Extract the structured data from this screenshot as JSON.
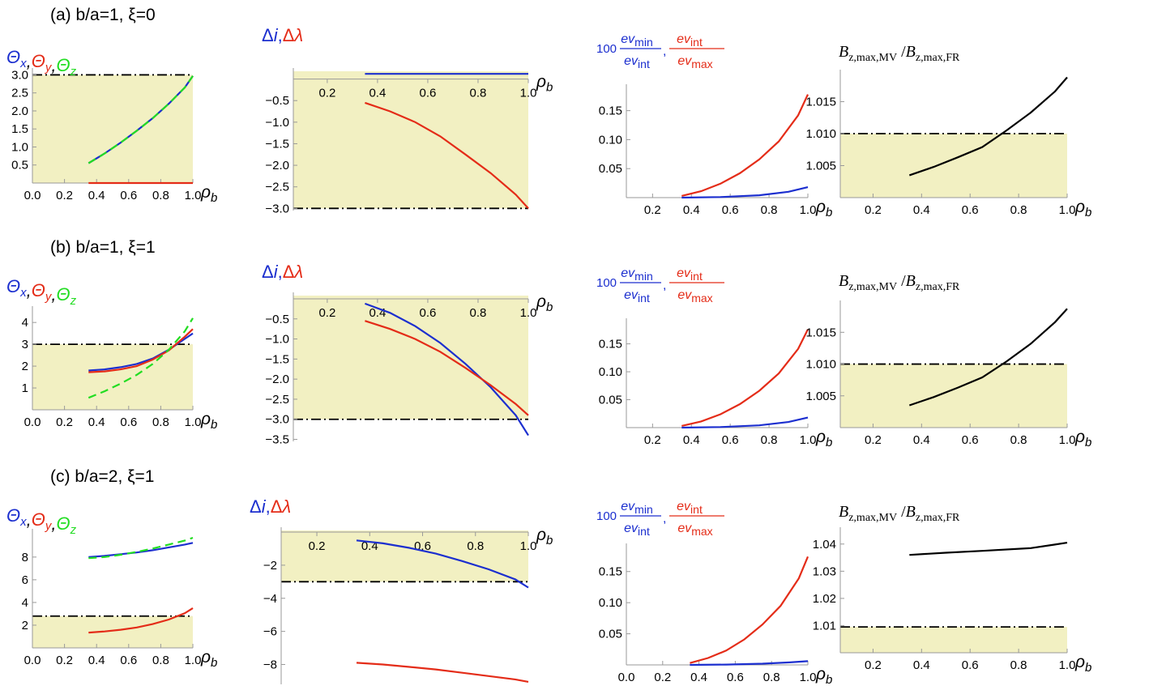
{
  "colors": {
    "blue": "#1c2fcf",
    "red": "#e42c18",
    "green": "#22dd22",
    "black": "#000000",
    "shade": "#f2f0c2"
  },
  "labels": {
    "theta_x": "Θx",
    "theta_y": "Θy",
    "theta_z": "Θz",
    "delta_i": "Δi",
    "delta_lambda": "Δλ",
    "ev_prefix": "100",
    "ev_min": "ev_min",
    "ev_int": "ev_int",
    "ev_max": "ev_max",
    "bratio": "B_z,max,MV / B_z,max,FR",
    "xlabel": "ρb"
  },
  "chart_data": [
    {
      "id": "a1",
      "type": "line",
      "row_title": "(a) b/a=1,  ξ=0",
      "xlabel": "ρb",
      "ylabel": "Θx, Θy, Θz",
      "xlim": [
        0,
        1
      ],
      "ylim": [
        0,
        3.1
      ],
      "xticks": [
        "0.0",
        "0.2",
        "0.4",
        "0.6",
        "0.8",
        "1.0"
      ],
      "xtick_values": [
        0,
        0.2,
        0.4,
        0.6,
        0.8,
        1.0
      ],
      "yticks": [
        "0.5",
        "1.0",
        "1.5",
        "2.0",
        "2.5",
        "3.0"
      ],
      "ytick_values": [
        0.5,
        1.0,
        1.5,
        2.0,
        2.5,
        3.0
      ],
      "threshold": 3.0,
      "shade_below": 3.0,
      "series": [
        {
          "name": "Θx",
          "color": "blue",
          "dash": false,
          "x": [
            0.35,
            0.45,
            0.55,
            0.65,
            0.75,
            0.85,
            0.95,
            1.0
          ],
          "y": [
            0.55,
            0.82,
            1.12,
            1.45,
            1.8,
            2.2,
            2.65,
            2.97
          ]
        },
        {
          "name": "Θz",
          "color": "green",
          "dash": true,
          "x": [
            0.35,
            0.45,
            0.55,
            0.65,
            0.75,
            0.85,
            0.95,
            1.0
          ],
          "y": [
            0.55,
            0.82,
            1.12,
            1.45,
            1.8,
            2.2,
            2.65,
            2.97
          ]
        },
        {
          "name": "Θy",
          "color": "red",
          "dash": false,
          "x": [
            0.35,
            1.0
          ],
          "y": [
            0,
            0
          ]
        }
      ]
    },
    {
      "id": "a2",
      "type": "line",
      "xlabel": "ρb",
      "ylabel": "Δi, Δλ",
      "xlim": [
        0.065,
        1
      ],
      "ylim": [
        -3.05,
        0.18
      ],
      "xaxis_at": 0,
      "xticks": [
        "0.2",
        "0.4",
        "0.6",
        "0.8",
        "1.0"
      ],
      "xtick_values": [
        0.2,
        0.4,
        0.6,
        0.8,
        1.0
      ],
      "yticks": [
        "-0.5",
        "-1.0",
        "-1.5",
        "-2.0",
        "-2.5",
        "-3.0"
      ],
      "ytick_values": [
        -0.5,
        -1.0,
        -1.5,
        -2.0,
        -2.5,
        -3.0
      ],
      "threshold": -3.0,
      "shade_above": -3.0,
      "series": [
        {
          "name": "Δi",
          "color": "blue",
          "dash": false,
          "x": [
            0.35,
            1.0
          ],
          "y": [
            0.12,
            0.12
          ]
        },
        {
          "name": "Δλ",
          "color": "red",
          "dash": false,
          "x": [
            0.35,
            0.45,
            0.55,
            0.65,
            0.75,
            0.85,
            0.95,
            1.0
          ],
          "y": [
            -0.55,
            -0.75,
            -1.0,
            -1.33,
            -1.75,
            -2.18,
            -2.68,
            -3.0
          ]
        }
      ]
    },
    {
      "id": "a3",
      "type": "line",
      "xlabel": "ρb",
      "ylabel": "100 ev_min/ev_int, ev_int/ev_max",
      "xlim": [
        0.065,
        1
      ],
      "ylim": [
        0,
        0.19
      ],
      "xticks": [
        "0.2",
        "0.4",
        "0.6",
        "0.8",
        "1.0"
      ],
      "xtick_values": [
        0.2,
        0.4,
        0.6,
        0.8,
        1.0
      ],
      "yticks": [
        "0.05",
        "0.10",
        "0.15"
      ],
      "ytick_values": [
        0.05,
        0.1,
        0.15
      ],
      "series": [
        {
          "name": "ev_int/ev_max",
          "color": "red",
          "dash": false,
          "x": [
            0.35,
            0.45,
            0.55,
            0.65,
            0.75,
            0.85,
            0.95,
            1.0
          ],
          "y": [
            0.003,
            0.011,
            0.024,
            0.042,
            0.066,
            0.097,
            0.142,
            0.178
          ]
        },
        {
          "name": "100 ev_min/ev_int",
          "color": "blue",
          "dash": false,
          "x": [
            0.35,
            0.55,
            0.75,
            0.9,
            1.0
          ],
          "y": [
            0.0,
            0.001,
            0.004,
            0.01,
            0.018
          ]
        }
      ]
    },
    {
      "id": "a4",
      "type": "line",
      "xlabel": "ρb",
      "ylabel": "B_z,max,MV / B_z,max,FR",
      "xlim": [
        0.065,
        1
      ],
      "ylim": [
        1.0,
        1.0195
      ],
      "xticks": [
        "0.2",
        "0.4",
        "0.6",
        "0.8",
        "1.0"
      ],
      "xtick_values": [
        0.2,
        0.4,
        0.6,
        0.8,
        1.0
      ],
      "yticks": [
        "1.005",
        "1.010",
        "1.015"
      ],
      "ytick_values": [
        1.005,
        1.01,
        1.015
      ],
      "threshold": 1.01,
      "shade_below": 1.01,
      "series": [
        {
          "name": "ratio",
          "color": "black",
          "dash": false,
          "x": [
            0.35,
            0.45,
            0.55,
            0.65,
            0.75,
            0.85,
            0.95,
            1.0
          ],
          "y": [
            1.0035,
            1.0048,
            1.0063,
            1.0079,
            1.0105,
            1.0133,
            1.0166,
            1.0188
          ]
        }
      ]
    },
    {
      "id": "b1",
      "type": "line",
      "row_title": "(b) b/a=1,  ξ=1",
      "xlabel": "ρb",
      "ylabel": "Θx, Θy, Θz",
      "xlim": [
        0,
        1
      ],
      "ylim": [
        0,
        4.6
      ],
      "xticks": [
        "0.0",
        "0.2",
        "0.4",
        "0.6",
        "0.8",
        "1.0"
      ],
      "xtick_values": [
        0,
        0.2,
        0.4,
        0.6,
        0.8,
        1.0
      ],
      "yticks": [
        "1",
        "2",
        "3",
        "4"
      ],
      "ytick_values": [
        1,
        2,
        3,
        4
      ],
      "threshold": 3.0,
      "shade_below": 3.0,
      "series": [
        {
          "name": "Θx",
          "color": "blue",
          "dash": false,
          "x": [
            0.35,
            0.45,
            0.55,
            0.65,
            0.75,
            0.85,
            0.95,
            1.0
          ],
          "y": [
            1.8,
            1.85,
            1.95,
            2.1,
            2.35,
            2.75,
            3.25,
            3.5
          ]
        },
        {
          "name": "Θy",
          "color": "red",
          "dash": false,
          "x": [
            0.35,
            0.45,
            0.55,
            0.65,
            0.75,
            0.85,
            0.95,
            1.0
          ],
          "y": [
            1.72,
            1.76,
            1.85,
            2.0,
            2.3,
            2.72,
            3.35,
            3.7
          ]
        },
        {
          "name": "Θz",
          "color": "green",
          "dash": true,
          "x": [
            0.35,
            0.45,
            0.55,
            0.65,
            0.75,
            0.85,
            0.95,
            1.0
          ],
          "y": [
            0.55,
            0.85,
            1.2,
            1.6,
            2.1,
            2.75,
            3.6,
            4.2
          ]
        }
      ]
    },
    {
      "id": "b2",
      "type": "line",
      "xlabel": "ρb",
      "ylabel": "Δi, Δλ",
      "xlim": [
        0.065,
        1
      ],
      "ylim": [
        -3.55,
        0.08
      ],
      "xaxis_at": 0,
      "xticks": [
        "0.2",
        "0.4",
        "0.6",
        "0.8",
        "1.0"
      ],
      "xtick_values": [
        0.2,
        0.4,
        0.6,
        0.8,
        1.0
      ],
      "yticks": [
        "-0.5",
        "-1.0",
        "-1.5",
        "-2.0",
        "-2.5",
        "-3.0",
        "-3.5"
      ],
      "ytick_values": [
        -0.5,
        -1.0,
        -1.5,
        -2.0,
        -2.5,
        -3.0,
        -3.5
      ],
      "threshold": -3.0,
      "shade_above": -3.0,
      "series": [
        {
          "name": "Δi",
          "color": "blue",
          "dash": false,
          "x": [
            0.35,
            0.45,
            0.55,
            0.65,
            0.75,
            0.85,
            0.95,
            1.0
          ],
          "y": [
            -0.12,
            -0.35,
            -0.68,
            -1.1,
            -1.62,
            -2.2,
            -2.9,
            -3.4
          ]
        },
        {
          "name": "Δλ",
          "color": "red",
          "dash": false,
          "x": [
            0.35,
            0.45,
            0.55,
            0.65,
            0.75,
            0.85,
            0.95,
            1.0
          ],
          "y": [
            -0.55,
            -0.75,
            -1.0,
            -1.32,
            -1.72,
            -2.15,
            -2.62,
            -2.9
          ]
        }
      ]
    },
    {
      "id": "b3",
      "type": "line",
      "xlabel": "ρb",
      "ylabel": "100 ev_min/ev_int, ev_int/ev_max",
      "xlim": [
        0.065,
        1
      ],
      "ylim": [
        0,
        0.19
      ],
      "xticks": [
        "0.2",
        "0.4",
        "0.6",
        "0.8",
        "1.0"
      ],
      "xtick_values": [
        0.2,
        0.4,
        0.6,
        0.8,
        1.0
      ],
      "yticks": [
        "0.05",
        "0.10",
        "0.15"
      ],
      "ytick_values": [
        0.05,
        0.1,
        0.15
      ],
      "series": [
        {
          "name": "ev_int/ev_max",
          "color": "red",
          "dash": false,
          "x": [
            0.35,
            0.45,
            0.55,
            0.65,
            0.75,
            0.85,
            0.95,
            1.0
          ],
          "y": [
            0.003,
            0.011,
            0.024,
            0.042,
            0.066,
            0.097,
            0.141,
            0.176
          ]
        },
        {
          "name": "100 ev_min/ev_int",
          "color": "blue",
          "dash": false,
          "x": [
            0.35,
            0.55,
            0.75,
            0.9,
            1.0
          ],
          "y": [
            0.0,
            0.001,
            0.004,
            0.01,
            0.018
          ]
        }
      ]
    },
    {
      "id": "b4",
      "type": "line",
      "xlabel": "ρb",
      "ylabel": "B_z,max,MV / B_z,max,FR",
      "xlim": [
        0.065,
        1
      ],
      "ylim": [
        1.0,
        1.0195
      ],
      "xticks": [
        "0.2",
        "0.4",
        "0.6",
        "0.8",
        "1.0"
      ],
      "xtick_values": [
        0.2,
        0.4,
        0.6,
        0.8,
        1.0
      ],
      "yticks": [
        "1.005",
        "1.010",
        "1.015"
      ],
      "ytick_values": [
        1.005,
        1.01,
        1.015
      ],
      "threshold": 1.01,
      "shade_below": 1.01,
      "series": [
        {
          "name": "ratio",
          "color": "black",
          "dash": false,
          "x": [
            0.35,
            0.45,
            0.55,
            0.65,
            0.75,
            0.85,
            0.95,
            1.0
          ],
          "y": [
            1.0035,
            1.0048,
            1.0063,
            1.0079,
            1.0104,
            1.0132,
            1.0166,
            1.0187
          ]
        }
      ]
    },
    {
      "id": "c1",
      "type": "line",
      "row_title": "(c) b/a=2,  ξ=1",
      "xlabel": "ρb",
      "ylabel": "Θx, Θy, Θz",
      "xlim": [
        0,
        1
      ],
      "ylim": [
        0,
        10.2
      ],
      "xticks": [
        "0.0",
        "0.2",
        "0.4",
        "0.6",
        "0.8",
        "1.0"
      ],
      "xtick_values": [
        0,
        0.2,
        0.4,
        0.6,
        0.8,
        1.0
      ],
      "yticks": [
        "2",
        "4",
        "6",
        "8"
      ],
      "ytick_values": [
        2,
        4,
        6,
        8
      ],
      "threshold": 2.8,
      "shade_below": 2.8,
      "series": [
        {
          "name": "Θx",
          "color": "blue",
          "dash": false,
          "x": [
            0.35,
            0.45,
            0.55,
            0.65,
            0.75,
            0.85,
            0.95,
            1.0
          ],
          "y": [
            8.0,
            8.1,
            8.25,
            8.4,
            8.6,
            8.85,
            9.1,
            9.25
          ]
        },
        {
          "name": "Θz",
          "color": "green",
          "dash": true,
          "x": [
            0.35,
            0.45,
            0.55,
            0.65,
            0.75,
            0.85,
            0.95,
            1.0
          ],
          "y": [
            7.9,
            8.0,
            8.2,
            8.45,
            8.75,
            9.1,
            9.45,
            9.7
          ]
        },
        {
          "name": "Θy",
          "color": "red",
          "dash": false,
          "x": [
            0.35,
            0.45,
            0.55,
            0.65,
            0.75,
            0.85,
            0.95,
            1.0
          ],
          "y": [
            1.35,
            1.45,
            1.6,
            1.8,
            2.1,
            2.5,
            3.05,
            3.5
          ]
        }
      ]
    },
    {
      "id": "c2",
      "type": "line",
      "xlabel": "ρb",
      "ylabel": "Δi, Δλ",
      "xlim": [
        0.065,
        1
      ],
      "ylim": [
        -9.2,
        0.1
      ],
      "xaxis_at": 0,
      "xticks": [
        "0.2",
        "0.4",
        "0.6",
        "0.8",
        "1.0"
      ],
      "xtick_values": [
        0.2,
        0.4,
        0.6,
        0.8,
        1.0
      ],
      "yticks": [
        "-2",
        "-4",
        "-6",
        "-8"
      ],
      "ytick_values": [
        -2,
        -4,
        -6,
        -8
      ],
      "threshold": -3.0,
      "shade_above": -3.0,
      "series": [
        {
          "name": "Δi",
          "color": "blue",
          "dash": false,
          "x": [
            0.35,
            0.45,
            0.55,
            0.65,
            0.75,
            0.85,
            0.95,
            1.0
          ],
          "y": [
            -0.5,
            -0.68,
            -0.95,
            -1.3,
            -1.75,
            -2.25,
            -2.85,
            -3.35
          ]
        },
        {
          "name": "Δλ",
          "color": "red",
          "dash": false,
          "x": [
            0.35,
            0.45,
            0.55,
            0.65,
            0.75,
            0.85,
            0.95,
            1.0
          ],
          "y": [
            -7.9,
            -8.0,
            -8.15,
            -8.3,
            -8.5,
            -8.7,
            -8.9,
            -9.05
          ]
        }
      ]
    },
    {
      "id": "c3",
      "type": "line",
      "xlabel": "ρb",
      "ylabel": "100 ev_min/ev_int, ev_int/ev_max",
      "xlim": [
        0,
        1
      ],
      "ylim": [
        0,
        0.19
      ],
      "xticks": [
        "0.0",
        "0.2",
        "0.4",
        "0.6",
        "0.8",
        "1.0"
      ],
      "xtick_values": [
        0,
        0.2,
        0.4,
        0.6,
        0.8,
        1.0
      ],
      "yticks": [
        "0.05",
        "0.10",
        "0.15"
      ],
      "ytick_values": [
        0.05,
        0.1,
        0.15
      ],
      "series": [
        {
          "name": "ev_int/ev_max",
          "color": "red",
          "dash": false,
          "x": [
            0.35,
            0.45,
            0.55,
            0.65,
            0.75,
            0.85,
            0.95,
            1.0
          ],
          "y": [
            0.003,
            0.011,
            0.023,
            0.041,
            0.065,
            0.095,
            0.139,
            0.174
          ]
        },
        {
          "name": "100 ev_min/ev_int",
          "color": "blue",
          "dash": false,
          "x": [
            0.35,
            0.55,
            0.75,
            0.9,
            1.0
          ],
          "y": [
            0.0,
            0.0005,
            0.002,
            0.004,
            0.006
          ]
        }
      ]
    },
    {
      "id": "c4",
      "type": "line",
      "xlabel": "ρb",
      "ylabel": "B_z,max,MV / B_z,max,FR",
      "xlim": [
        0.065,
        1
      ],
      "ylim": [
        1.0,
        1.045
      ],
      "xticks": [
        "0.2",
        "0.4",
        "0.6",
        "0.8",
        "1.0"
      ],
      "xtick_values": [
        0.2,
        0.4,
        0.6,
        0.8,
        1.0
      ],
      "yticks": [
        "1.01",
        "1.02",
        "1.03",
        "1.04"
      ],
      "ytick_values": [
        1.01,
        1.02,
        1.03,
        1.04
      ],
      "threshold": 1.0095,
      "shade_below": 1.0095,
      "series": [
        {
          "name": "ratio",
          "color": "black",
          "dash": false,
          "x": [
            0.35,
            0.5,
            0.65,
            0.85,
            0.95,
            1.0
          ],
          "y": [
            1.036,
            1.0368,
            1.0375,
            1.0385,
            1.0398,
            1.0405
          ]
        }
      ]
    }
  ]
}
